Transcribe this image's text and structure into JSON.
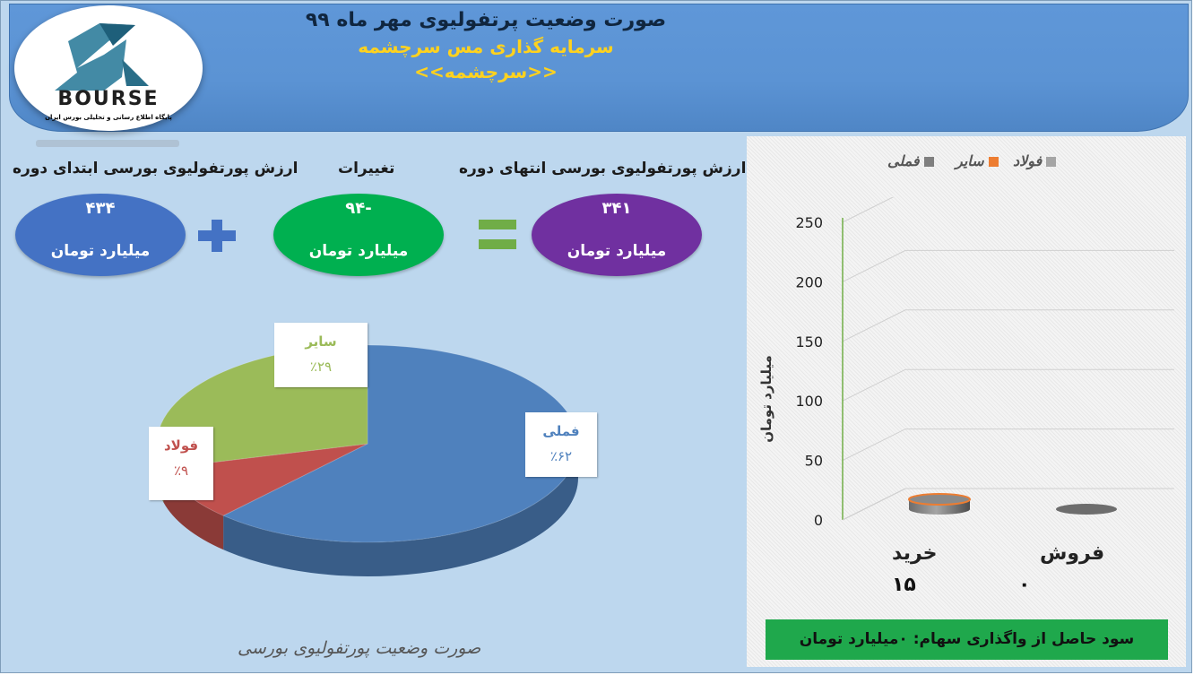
{
  "header": {
    "title": "صورت وضعیت پرتفولیوی مهر ماه ۹۹",
    "subtitle": "سرمایه گذاری مس سرچشمه",
    "symbol": "<<سرچشمه>>"
  },
  "logo": {
    "brand": "BOURSE",
    "tagline": "پایگاه اطلاع رسانی و تحلیلی بورس ایران"
  },
  "summary": {
    "start": {
      "label": "ارزش پورتفولیوی بورسی ابتدای دوره",
      "value": "۴۳۴",
      "unit": "میلیارد تومان",
      "color": "#4472c4"
    },
    "change": {
      "label": "تغییرات",
      "value": "-۹۴",
      "unit": "میلیارد تومان",
      "color": "#00b050"
    },
    "end": {
      "label": "ارزش پورتفولیوی بورسی انتهای دوره",
      "value": "۳۴۱",
      "unit": "میلیارد تومان",
      "color": "#7030a0"
    }
  },
  "footer_caption": "صورت وضعیت پورتفولیوی بورسی",
  "profit_note": "سود حاصل از واگذاری سهام: ۰میلیارد تومان",
  "chart_data": [
    {
      "type": "pie",
      "categories": [
        "فملی",
        "فولاد",
        "سایر"
      ],
      "values": [
        62,
        9,
        29
      ],
      "value_labels": [
        "٪۶۲",
        "٪۹",
        "٪۲۹"
      ],
      "colors": [
        "#4f81bd",
        "#c0504d",
        "#9bbb59"
      ],
      "label_colors": [
        "#4f81bd",
        "#c0504d",
        "#9bbb59"
      ]
    },
    {
      "type": "bar",
      "categories": [
        "خرید",
        "فروش"
      ],
      "category_values": [
        "۱۵",
        "۰"
      ],
      "series": [
        {
          "name": "فولاد",
          "values": [
            0,
            0
          ],
          "color": "#a5a5a5"
        },
        {
          "name": "سایر",
          "values": [
            0,
            0
          ],
          "color": "#ed7d31"
        },
        {
          "name": "فملی",
          "values": [
            15,
            0
          ],
          "color": "#7f7f7f"
        }
      ],
      "ylabel": "میلیارد تومان",
      "ylim": [
        0,
        250
      ],
      "yticks": [
        0,
        50,
        100,
        150,
        200,
        250
      ],
      "legend": "top",
      "grid": true
    }
  ]
}
